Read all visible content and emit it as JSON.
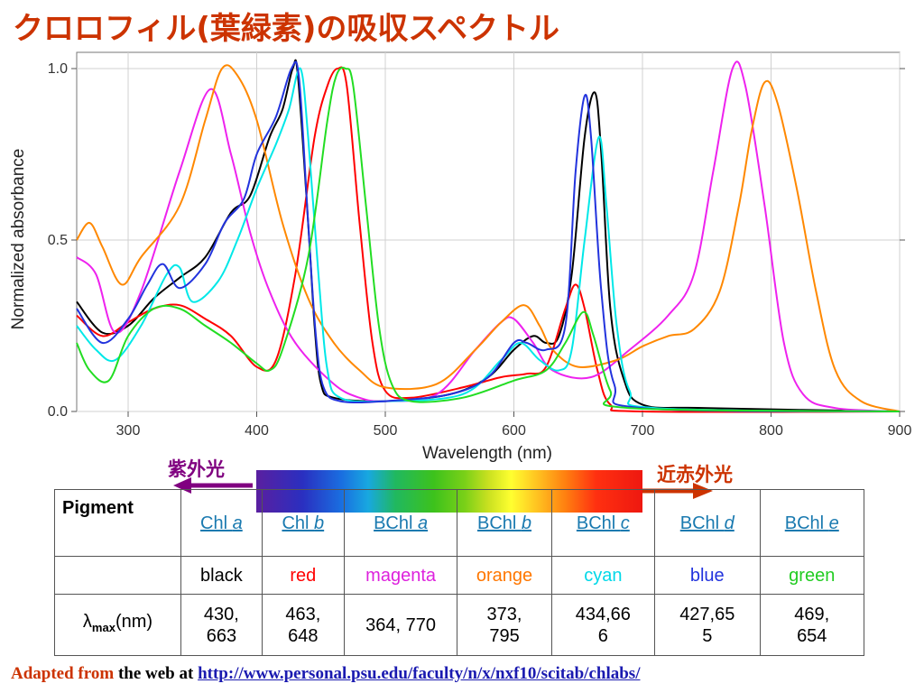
{
  "title": "クロロフィル(葉緑素)の吸収スペクトル",
  "chart_data": {
    "type": "line",
    "xlabel": "Wavelength (nm)",
    "ylabel": "Normalized absorbance",
    "xlim": [
      260,
      900
    ],
    "ylim": [
      0.0,
      1.0
    ],
    "xticks": [
      "300",
      "400",
      "500",
      "600",
      "700",
      "800",
      "900"
    ],
    "yticks": [
      "0.0",
      "0.5",
      "1.0"
    ],
    "grid": true,
    "series": [
      {
        "color": "#000000",
        "points": [
          [
            260,
            0.32
          ],
          [
            280,
            0.23
          ],
          [
            300,
            0.25
          ],
          [
            320,
            0.33
          ],
          [
            340,
            0.39
          ],
          [
            360,
            0.45
          ],
          [
            380,
            0.58
          ],
          [
            395,
            0.63
          ],
          [
            410,
            0.8
          ],
          [
            420,
            0.88
          ],
          [
            428,
            1.0
          ],
          [
            432,
            0.98
          ],
          [
            440,
            0.55
          ],
          [
            445,
            0.25
          ],
          [
            450,
            0.08
          ],
          [
            460,
            0.04
          ],
          [
            500,
            0.03
          ],
          [
            550,
            0.05
          ],
          [
            580,
            0.1
          ],
          [
            600,
            0.18
          ],
          [
            615,
            0.22
          ],
          [
            625,
            0.2
          ],
          [
            635,
            0.22
          ],
          [
            645,
            0.4
          ],
          [
            655,
            0.8
          ],
          [
            663,
            0.93
          ],
          [
            668,
            0.75
          ],
          [
            675,
            0.3
          ],
          [
            685,
            0.1
          ],
          [
            700,
            0.02
          ],
          [
            750,
            0.01
          ],
          [
            900,
            0.0
          ]
        ]
      },
      {
        "color": "#ff0000",
        "points": [
          [
            260,
            0.28
          ],
          [
            280,
            0.22
          ],
          [
            300,
            0.26
          ],
          [
            320,
            0.3
          ],
          [
            340,
            0.31
          ],
          [
            360,
            0.27
          ],
          [
            380,
            0.22
          ],
          [
            400,
            0.13
          ],
          [
            415,
            0.15
          ],
          [
            430,
            0.4
          ],
          [
            445,
            0.8
          ],
          [
            455,
            0.95
          ],
          [
            463,
            1.0
          ],
          [
            470,
            0.95
          ],
          [
            480,
            0.55
          ],
          [
            490,
            0.2
          ],
          [
            500,
            0.06
          ],
          [
            520,
            0.04
          ],
          [
            560,
            0.07
          ],
          [
            590,
            0.1
          ],
          [
            610,
            0.11
          ],
          [
            625,
            0.13
          ],
          [
            640,
            0.3
          ],
          [
            648,
            0.37
          ],
          [
            655,
            0.3
          ],
          [
            665,
            0.12
          ],
          [
            675,
            0.02
          ],
          [
            700,
            0.0
          ],
          [
            900,
            0.0
          ]
        ]
      },
      {
        "color": "#ee22ee",
        "points": [
          [
            260,
            0.45
          ],
          [
            275,
            0.4
          ],
          [
            290,
            0.23
          ],
          [
            310,
            0.35
          ],
          [
            340,
            0.7
          ],
          [
            364,
            0.94
          ],
          [
            380,
            0.75
          ],
          [
            395,
            0.52
          ],
          [
            410,
            0.35
          ],
          [
            430,
            0.2
          ],
          [
            460,
            0.08
          ],
          [
            480,
            0.04
          ],
          [
            500,
            0.03
          ],
          [
            540,
            0.05
          ],
          [
            570,
            0.18
          ],
          [
            590,
            0.26
          ],
          [
            600,
            0.27
          ],
          [
            615,
            0.2
          ],
          [
            630,
            0.12
          ],
          [
            660,
            0.1
          ],
          [
            690,
            0.18
          ],
          [
            720,
            0.28
          ],
          [
            740,
            0.4
          ],
          [
            755,
            0.7
          ],
          [
            770,
            1.0
          ],
          [
            780,
            0.95
          ],
          [
            795,
            0.6
          ],
          [
            810,
            0.2
          ],
          [
            825,
            0.05
          ],
          [
            850,
            0.01
          ],
          [
            900,
            0.0
          ]
        ]
      },
      {
        "color": "#ff8800",
        "points": [
          [
            260,
            0.5
          ],
          [
            270,
            0.55
          ],
          [
            280,
            0.48
          ],
          [
            295,
            0.37
          ],
          [
            310,
            0.45
          ],
          [
            340,
            0.6
          ],
          [
            360,
            0.85
          ],
          [
            373,
            1.0
          ],
          [
            385,
            0.98
          ],
          [
            400,
            0.85
          ],
          [
            420,
            0.55
          ],
          [
            440,
            0.33
          ],
          [
            460,
            0.2
          ],
          [
            480,
            0.12
          ],
          [
            500,
            0.07
          ],
          [
            540,
            0.08
          ],
          [
            570,
            0.18
          ],
          [
            590,
            0.26
          ],
          [
            608,
            0.31
          ],
          [
            620,
            0.25
          ],
          [
            630,
            0.18
          ],
          [
            650,
            0.13
          ],
          [
            680,
            0.15
          ],
          [
            700,
            0.19
          ],
          [
            720,
            0.22
          ],
          [
            740,
            0.24
          ],
          [
            760,
            0.35
          ],
          [
            775,
            0.6
          ],
          [
            785,
            0.82
          ],
          [
            795,
            0.96
          ],
          [
            805,
            0.9
          ],
          [
            820,
            0.65
          ],
          [
            835,
            0.35
          ],
          [
            850,
            0.12
          ],
          [
            870,
            0.03
          ],
          [
            900,
            0.0
          ]
        ]
      },
      {
        "color": "#00e8e8",
        "points": [
          [
            260,
            0.25
          ],
          [
            275,
            0.18
          ],
          [
            290,
            0.15
          ],
          [
            310,
            0.25
          ],
          [
            330,
            0.4
          ],
          [
            340,
            0.42
          ],
          [
            350,
            0.32
          ],
          [
            370,
            0.38
          ],
          [
            385,
            0.5
          ],
          [
            400,
            0.65
          ],
          [
            415,
            0.78
          ],
          [
            425,
            0.88
          ],
          [
            434,
            1.0
          ],
          [
            440,
            0.8
          ],
          [
            448,
            0.4
          ],
          [
            455,
            0.12
          ],
          [
            465,
            0.04
          ],
          [
            500,
            0.03
          ],
          [
            560,
            0.05
          ],
          [
            590,
            0.15
          ],
          [
            605,
            0.2
          ],
          [
            620,
            0.15
          ],
          [
            635,
            0.12
          ],
          [
            645,
            0.18
          ],
          [
            655,
            0.5
          ],
          [
            666,
            0.8
          ],
          [
            672,
            0.6
          ],
          [
            680,
            0.25
          ],
          [
            690,
            0.06
          ],
          [
            710,
            0.01
          ],
          [
            900,
            0.0
          ]
        ]
      },
      {
        "color": "#2233dd",
        "points": [
          [
            260,
            0.3
          ],
          [
            280,
            0.2
          ],
          [
            300,
            0.27
          ],
          [
            315,
            0.37
          ],
          [
            327,
            0.43
          ],
          [
            340,
            0.36
          ],
          [
            360,
            0.43
          ],
          [
            375,
            0.55
          ],
          [
            390,
            0.62
          ],
          [
            400,
            0.75
          ],
          [
            415,
            0.86
          ],
          [
            427,
            1.0
          ],
          [
            433,
            0.97
          ],
          [
            440,
            0.55
          ],
          [
            446,
            0.22
          ],
          [
            452,
            0.07
          ],
          [
            465,
            0.03
          ],
          [
            500,
            0.03
          ],
          [
            550,
            0.05
          ],
          [
            580,
            0.1
          ],
          [
            600,
            0.2
          ],
          [
            610,
            0.2
          ],
          [
            625,
            0.18
          ],
          [
            640,
            0.25
          ],
          [
            648,
            0.7
          ],
          [
            655,
            0.92
          ],
          [
            660,
            0.8
          ],
          [
            668,
            0.35
          ],
          [
            678,
            0.08
          ],
          [
            700,
            0.01
          ],
          [
            900,
            0.0
          ]
        ]
      },
      {
        "color": "#22dd22",
        "points": [
          [
            260,
            0.2
          ],
          [
            270,
            0.12
          ],
          [
            285,
            0.09
          ],
          [
            300,
            0.22
          ],
          [
            320,
            0.3
          ],
          [
            340,
            0.3
          ],
          [
            360,
            0.25
          ],
          [
            380,
            0.2
          ],
          [
            400,
            0.14
          ],
          [
            410,
            0.12
          ],
          [
            420,
            0.18
          ],
          [
            440,
            0.45
          ],
          [
            455,
            0.85
          ],
          [
            462,
            0.98
          ],
          [
            469,
            1.0
          ],
          [
            475,
            0.95
          ],
          [
            485,
            0.6
          ],
          [
            495,
            0.25
          ],
          [
            505,
            0.08
          ],
          [
            520,
            0.03
          ],
          [
            560,
            0.04
          ],
          [
            600,
            0.09
          ],
          [
            625,
            0.12
          ],
          [
            640,
            0.2
          ],
          [
            654,
            0.29
          ],
          [
            662,
            0.22
          ],
          [
            675,
            0.06
          ],
          [
            690,
            0.01
          ],
          [
            900,
            0.0
          ]
        ]
      }
    ]
  },
  "uv_label": "紫外光",
  "nir_label": "近赤外光",
  "table": {
    "header_label": "Pigment",
    "pigments": [
      {
        "prefix": "Chl ",
        "italic": "a",
        "color_name": "black",
        "color": "#000000",
        "lambda": "430,\n663"
      },
      {
        "prefix": "Chl ",
        "italic": "b",
        "color_name": "red",
        "color": "#ff0000",
        "lambda": "463,\n648"
      },
      {
        "prefix": "BChl ",
        "italic": "a",
        "color_name": "magenta",
        "color": "#dd22dd",
        "lambda": "364, 770"
      },
      {
        "prefix": "BChl ",
        "italic": "b",
        "color_name": "orange",
        "color": "#ff7700",
        "lambda": "373,\n795"
      },
      {
        "prefix": "BChl ",
        "italic": "c",
        "color_name": "cyan",
        "color": "#00d8e8",
        "lambda": "434,66\n6"
      },
      {
        "prefix": "BChl ",
        "italic": "d",
        "color_name": "blue",
        "color": "#2233dd",
        "lambda": "427,65\n5"
      },
      {
        "prefix": "BChl ",
        "italic": "e",
        "color_name": "green",
        "color": "#22cc22",
        "lambda": "469,\n654"
      }
    ],
    "lambda_symbol": "λ",
    "lambda_sub": "max",
    "lambda_unit": "(nm)",
    "link_color": "#1a7ab0"
  },
  "credit": {
    "prefix": "Adapted from",
    "middle": " the web at ",
    "link": "http://www.personal.psu.edu/faculty/n/x/nxf10/scitab/chlabs/"
  }
}
